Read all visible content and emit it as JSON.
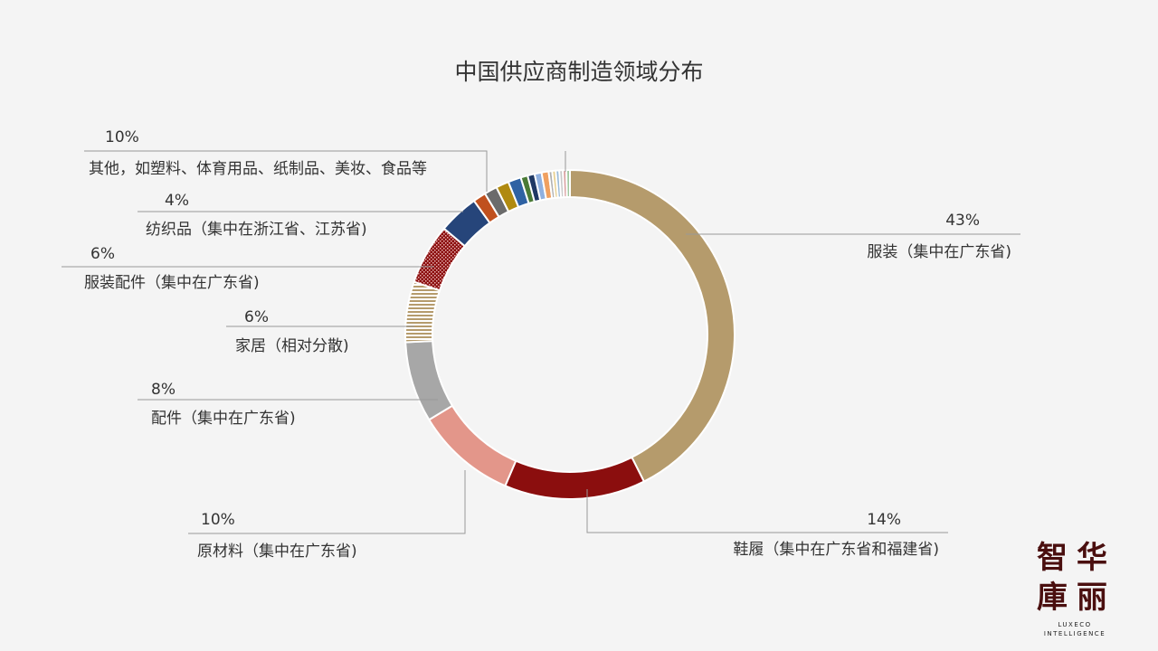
{
  "chart_data": {
    "type": "pie",
    "title": "中国供应商制造领域分布",
    "slices": [
      {
        "label": "服装（集中在广东省)",
        "pct_label": "43%",
        "value": 43,
        "color": "#b59b6c"
      },
      {
        "label": "鞋履（集中在广东省和福建省)",
        "pct_label": "14%",
        "value": 14,
        "color": "#8b0e0e"
      },
      {
        "label": "原材料（集中在广东省)",
        "pct_label": "10%",
        "value": 10,
        "color": "#e3968a"
      },
      {
        "label": "配件（集中在广东省)",
        "pct_label": "8%",
        "value": 8,
        "color": "#a7a7a7"
      },
      {
        "label": "家居（相对分散)",
        "pct_label": "6%",
        "value": 6,
        "color": "#b59b6c",
        "pattern": "h-stripes"
      },
      {
        "label": "服装配件（集中在广东省)",
        "pct_label": "6%",
        "value": 6,
        "color": "#8b0e0e",
        "pattern": "dots"
      },
      {
        "label": "纺织品（集中在浙江省、江苏省)",
        "pct_label": "4%",
        "value": 4,
        "color": "#26457a"
      },
      {
        "label": "其他，如塑料、体育用品、纸制品、美妆、食品等",
        "pct_label": "10%",
        "value": 10,
        "color": "#c0501e",
        "sub_colors": [
          "#c0501e",
          "#6b6b6b",
          "#b08a10",
          "#2f62a3",
          "#4a7a36",
          "#1f3864",
          "#8fb0e0",
          "#f0a060",
          "#b0b0b0",
          "#e8d090",
          "#9bbbd8",
          "#c8c8c8",
          "#d9a0a0",
          "#a0c8a0"
        ]
      }
    ]
  },
  "logo": {
    "chars": [
      "智",
      "华",
      "庫",
      "丽"
    ],
    "sub1": "LUXECO",
    "sub2": "INTELLIGENCE"
  }
}
